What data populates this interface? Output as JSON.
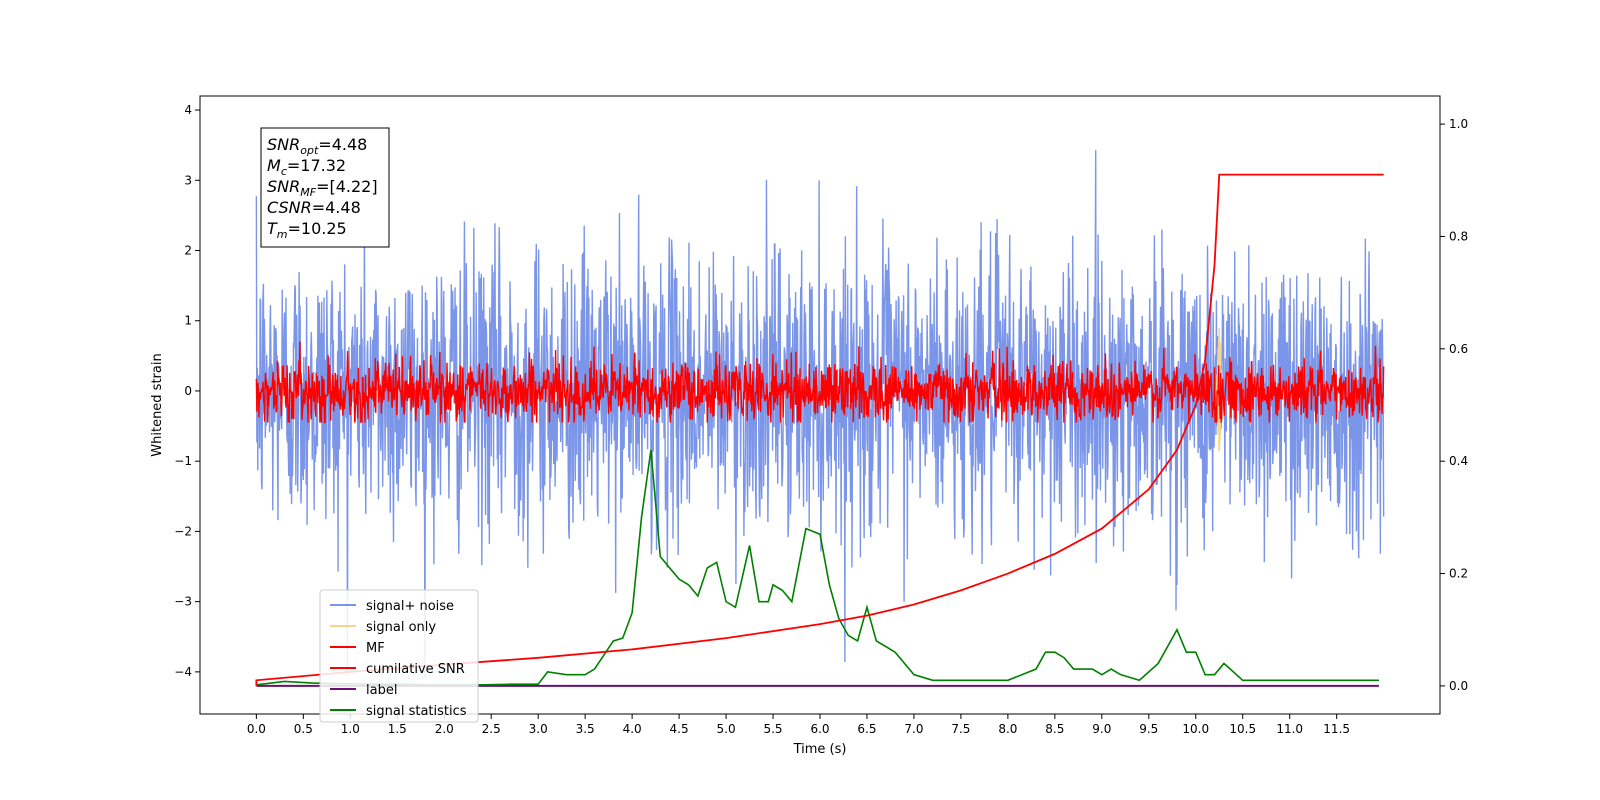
{
  "chart_data": {
    "type": "line",
    "xlabel": "Time (s)",
    "ylabel": "Whitened strain",
    "xlim": [
      -0.6,
      12.6
    ],
    "ylim": [
      -4.6,
      4.2
    ],
    "y2lim": [
      -0.05,
      1.05
    ],
    "x_ticks": [
      "0.0",
      "0.5",
      "1.0",
      "1.5",
      "2.0",
      "2.5",
      "3.0",
      "3.5",
      "4.0",
      "4.5",
      "5.0",
      "5.5",
      "6.0",
      "6.5",
      "7.0",
      "7.5",
      "8.0",
      "8.5",
      "9.0",
      "9.5",
      "10.0",
      "10.5",
      "11.0",
      "11.5"
    ],
    "y_ticks": [
      "4",
      "3",
      "2",
      "1",
      "0",
      "−1",
      "−2",
      "−3",
      "−4"
    ],
    "y2_ticks": [
      "1.0",
      "0.8",
      "0.6",
      "0.4",
      "0.2",
      "0.0"
    ],
    "annotation": [
      {
        "main": "SNR",
        "sub": "opt",
        "value": "=4.48"
      },
      {
        "main": "M",
        "sub": "c",
        "value": "=17.32"
      },
      {
        "main": "SNR",
        "sub": "MF",
        "value": "=[4.22]"
      },
      {
        "main": "CSNR",
        "sub": "",
        "value": "=4.48"
      },
      {
        "main": "T",
        "sub": "m",
        "value": "=10.25"
      }
    ],
    "legend": [
      {
        "label": "signal+ noise",
        "color": "#7b96e8"
      },
      {
        "label": "signal only",
        "color": "#f5d58a"
      },
      {
        "label": "MF",
        "color": "#ff0000"
      },
      {
        "label": "cumilative SNR",
        "color": "#ff0000"
      },
      {
        "label": "label",
        "color": "#6a0f74"
      },
      {
        "label": "signal statistics",
        "color": "#008000"
      }
    ],
    "legend_position": "lower-left",
    "signal_noise": {
      "color": "#7b96e8",
      "x_range": [
        0,
        12
      ],
      "amplitude_std": 1.0
    },
    "signal_only": {
      "color": "#f5d58a",
      "center_time": 10.25,
      "peak": 0.9
    },
    "mf": {
      "color": "#ff0000",
      "x_range": [
        0,
        12
      ],
      "amplitude_std": 0.22
    },
    "cumulative_snr": {
      "color": "#ff0000",
      "x": [
        0.0,
        1.0,
        2.0,
        3.0,
        4.0,
        5.0,
        6.0,
        6.5,
        7.0,
        7.5,
        8.0,
        8.5,
        9.0,
        9.5,
        9.8,
        10.0,
        10.1,
        10.2,
        10.25,
        12.0
      ],
      "y": [
        0.01,
        0.025,
        0.038,
        0.05,
        0.065,
        0.085,
        0.11,
        0.125,
        0.145,
        0.17,
        0.2,
        0.235,
        0.28,
        0.35,
        0.42,
        0.5,
        0.58,
        0.75,
        0.91,
        0.91
      ]
    },
    "label_series": {
      "color": "#6a0f74",
      "x_range": [
        0,
        11.95
      ],
      "y": 0.0
    },
    "signal_statistics": {
      "color": "#008000",
      "x": [
        0.0,
        0.3,
        0.6,
        0.9,
        1.2,
        1.5,
        1.8,
        2.1,
        2.4,
        2.7,
        3.0,
        3.1,
        3.3,
        3.5,
        3.6,
        3.8,
        3.9,
        4.0,
        4.1,
        4.2,
        4.3,
        4.4,
        4.5,
        4.6,
        4.7,
        4.8,
        4.9,
        5.0,
        5.1,
        5.25,
        5.35,
        5.45,
        5.5,
        5.6,
        5.7,
        5.85,
        6.0,
        6.1,
        6.2,
        6.3,
        6.4,
        6.5,
        6.6,
        6.8,
        7.0,
        7.2,
        7.5,
        8.0,
        8.3,
        8.4,
        8.5,
        8.6,
        8.7,
        8.9,
        9.0,
        9.1,
        9.2,
        9.4,
        9.6,
        9.8,
        9.9,
        10.0,
        10.1,
        10.2,
        10.3,
        10.5,
        11.0,
        11.5,
        11.8,
        11.95
      ],
      "y": [
        0.002,
        0.008,
        0.005,
        0.004,
        0.003,
        0.003,
        0.002,
        0.002,
        0.002,
        0.003,
        0.003,
        0.025,
        0.02,
        0.02,
        0.03,
        0.08,
        0.085,
        0.13,
        0.3,
        0.42,
        0.23,
        0.21,
        0.19,
        0.18,
        0.16,
        0.21,
        0.22,
        0.15,
        0.14,
        0.25,
        0.15,
        0.15,
        0.18,
        0.17,
        0.15,
        0.28,
        0.27,
        0.18,
        0.12,
        0.09,
        0.08,
        0.14,
        0.08,
        0.06,
        0.02,
        0.01,
        0.01,
        0.01,
        0.03,
        0.06,
        0.06,
        0.05,
        0.03,
        0.03,
        0.02,
        0.03,
        0.02,
        0.01,
        0.04,
        0.1,
        0.06,
        0.06,
        0.02,
        0.02,
        0.04,
        0.01,
        0.01,
        0.01,
        0.01,
        0.01
      ]
    }
  }
}
